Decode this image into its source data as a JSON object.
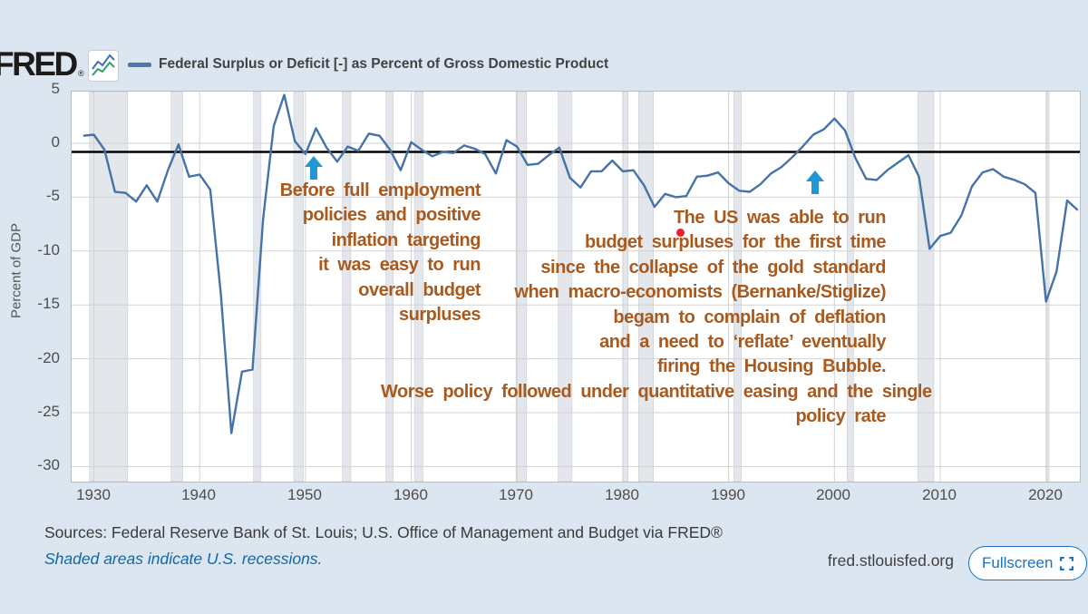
{
  "header": {
    "logo": "FRED",
    "registered_mark": "®",
    "series_label": "Federal Surplus or Deficit [-] as Percent of Gross Domestic Product",
    "legend_color": "#4572a7"
  },
  "chart_data": {
    "type": "line",
    "title": "Federal Surplus or Deficit [-] as Percent of Gross Domestic Product",
    "ylabel": "Percent of GDP",
    "xlabel": "",
    "grid": true,
    "x_ticks": [
      1930,
      1940,
      1950,
      1960,
      1970,
      1980,
      1990,
      2000,
      2010,
      2020
    ],
    "y_ticks": [
      5,
      0,
      -5,
      -10,
      -15,
      -20,
      -25,
      -30
    ],
    "x_range": [
      1927.9,
      2023.2
    ],
    "y_range": [
      -31.4,
      4.8
    ],
    "line_color": "#4572a7",
    "grid_color": "#d2d2d2",
    "plot_bg": "#ffffff",
    "recession_band_color": "#e3e6ea",
    "reference_line": {
      "value": -0.8,
      "color": "#000000"
    },
    "recessions": [
      [
        1929.6,
        1933.2
      ],
      [
        1937.3,
        1938.4
      ],
      [
        1945.1,
        1945.8
      ],
      [
        1948.9,
        1949.8
      ],
      [
        1953.5,
        1954.3
      ],
      [
        1957.6,
        1958.3
      ],
      [
        1960.3,
        1961.1
      ],
      [
        1969.9,
        1970.9
      ],
      [
        1973.9,
        1975.2
      ],
      [
        1980.0,
        1980.5
      ],
      [
        1981.5,
        1982.9
      ],
      [
        1990.5,
        1991.2
      ],
      [
        2001.2,
        2001.8
      ],
      [
        2007.9,
        2009.4
      ],
      [
        2020.1,
        2020.3
      ]
    ],
    "series": [
      {
        "name": "Federal Surplus or Deficit [-] as Percent of Gross Domestic Product",
        "x": [
          1929,
          1930,
          1931,
          1932,
          1933,
          1934,
          1935,
          1936,
          1937,
          1938,
          1939,
          1940,
          1941,
          1942,
          1943,
          1944,
          1945,
          1946,
          1947,
          1948,
          1949,
          1950,
          1951,
          1952,
          1953,
          1954,
          1955,
          1956,
          1957,
          1958,
          1959,
          1960,
          1961,
          1962,
          1963,
          1964,
          1965,
          1966,
          1967,
          1968,
          1969,
          1970,
          1971,
          1972,
          1973,
          1974,
          1975,
          1976,
          1977,
          1978,
          1979,
          1980,
          1981,
          1982,
          1983,
          1984,
          1985,
          1986,
          1987,
          1988,
          1989,
          1990,
          1991,
          1992,
          1993,
          1994,
          1995,
          1996,
          1997,
          1998,
          1999,
          2000,
          2001,
          2002,
          2003,
          2004,
          2005,
          2006,
          2007,
          2008,
          2009,
          2010,
          2011,
          2012,
          2013,
          2014,
          2015,
          2016,
          2017,
          2018,
          2019,
          2020,
          2021,
          2022,
          2023
        ],
        "values": [
          0.7,
          0.8,
          -0.6,
          -4.5,
          -4.6,
          -5.4,
          -3.9,
          -5.4,
          -2.5,
          -0.1,
          -3.1,
          -2.9,
          -4.3,
          -13.9,
          -26.9,
          -21.2,
          -21.0,
          -7.0,
          1.6,
          4.5,
          0.2,
          -1.0,
          1.4,
          -0.4,
          -1.7,
          -0.3,
          -0.7,
          0.9,
          0.7,
          -0.6,
          -2.5,
          0.1,
          -0.6,
          -1.2,
          -0.8,
          -0.9,
          -0.2,
          -0.5,
          -1.0,
          -2.8,
          0.3,
          -0.3,
          -2.0,
          -1.9,
          -1.1,
          -0.4,
          -3.2,
          -4.1,
          -2.6,
          -2.6,
          -1.6,
          -2.6,
          -2.5,
          -3.9,
          -5.9,
          -4.7,
          -5.0,
          -4.9,
          -3.1,
          -3.0,
          -2.7,
          -3.7,
          -4.4,
          -4.5,
          -3.8,
          -2.8,
          -2.2,
          -1.3,
          -0.3,
          0.8,
          1.3,
          2.3,
          1.2,
          -1.4,
          -3.3,
          -3.4,
          -2.5,
          -1.8,
          -1.1,
          -3.1,
          -9.8,
          -8.6,
          -8.3,
          -6.7,
          -4.0,
          -2.7,
          -2.4,
          -3.1,
          -3.4,
          -3.8,
          -4.6,
          -14.7,
          -11.9,
          -5.3,
          -6.2
        ]
      }
    ],
    "legend_position": "top"
  },
  "annotations": {
    "color": "#a85a1e",
    "arrow_color": "#2196d3",
    "dot_color": "#e8202a",
    "first": {
      "lines": [
        "Before full employment",
        "policies and positive",
        "inflation targeting",
        "it was easy to run",
        "overall budget",
        "surpluses"
      ]
    },
    "second": {
      "lines": [
        "The US was able to run",
        "budget surpluses for the first time",
        "since the collapse of the gold standard",
        "when macro-economists (Bernanke/Stiglize)",
        "begam to complain of deflation",
        "and a need to ‘reflate’ eventually",
        "firing the Housing Bubble.",
        "Worse policy followed under quantitative easing and the single",
        "policy rate"
      ]
    }
  },
  "footer": {
    "sources": "Sources: Federal Reserve Bank of St. Louis; U.S. Office of Management and Budget via FRED®",
    "shaded_note": "Shaded areas indicate U.S. recessions.",
    "site": "fred.stlouisfed.org",
    "fullscreen_label": "Fullscreen",
    "accent_color": "#1a73bc"
  }
}
